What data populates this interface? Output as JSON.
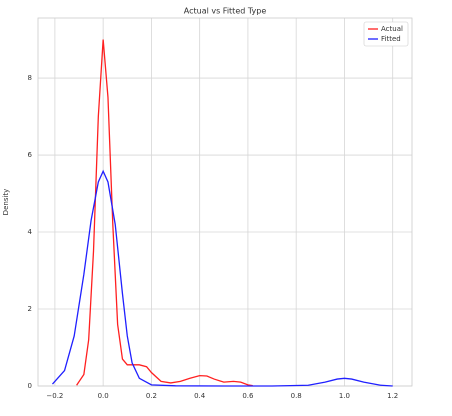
{
  "chart_data": {
    "type": "line",
    "title": "Actual vs Fitted Type",
    "ylabel": "Density",
    "xlim": [
      -0.27,
      1.28
    ],
    "ylim": [
      0,
      9.56
    ],
    "xticks": [
      {
        "value": -0.2,
        "label": "−0.2"
      },
      {
        "value": 0,
        "label": "0.0"
      },
      0.2,
      0.4,
      0.6,
      0.8,
      {
        "value": 1,
        "label": "1.0"
      },
      1.2
    ],
    "yticks": [
      0,
      2,
      4,
      6,
      8
    ],
    "grid": true,
    "legend": "upper right",
    "series": [
      {
        "name": "Actual",
        "color": "#ff2020",
        "x": [
          -0.11,
          -0.08,
          -0.06,
          -0.04,
          -0.02,
          0,
          0.02,
          0.04,
          0.06,
          0.08,
          0.1,
          0.12,
          0.15,
          0.18,
          0.2,
          0.24,
          0.28,
          0.32,
          0.36,
          0.4,
          0.43,
          0.46,
          0.5,
          0.54,
          0.57,
          0.6,
          0.62
        ],
        "values": [
          0.02,
          0.3,
          1.2,
          3.5,
          7.0,
          9.0,
          7.5,
          4.2,
          1.6,
          0.7,
          0.55,
          0.55,
          0.55,
          0.5,
          0.35,
          0.12,
          0.08,
          0.12,
          0.2,
          0.27,
          0.26,
          0.18,
          0.1,
          0.12,
          0.1,
          0.03,
          0.01
        ]
      },
      {
        "name": "Fitted",
        "color": "#2020ff",
        "x": [
          -0.21,
          -0.16,
          -0.12,
          -0.08,
          -0.05,
          -0.02,
          0,
          0.02,
          0.05,
          0.08,
          0.1,
          0.12,
          0.15,
          0.2,
          0.3,
          0.5,
          0.7,
          0.85,
          0.92,
          0.97,
          1.0,
          1.03,
          1.08,
          1.15,
          1.2
        ],
        "values": [
          0.05,
          0.4,
          1.3,
          2.9,
          4.3,
          5.3,
          5.58,
          5.3,
          4.2,
          2.4,
          1.3,
          0.6,
          0.2,
          0.03,
          0.005,
          0,
          0,
          0.02,
          0.1,
          0.18,
          0.2,
          0.18,
          0.1,
          0.02,
          0
        ]
      }
    ]
  }
}
